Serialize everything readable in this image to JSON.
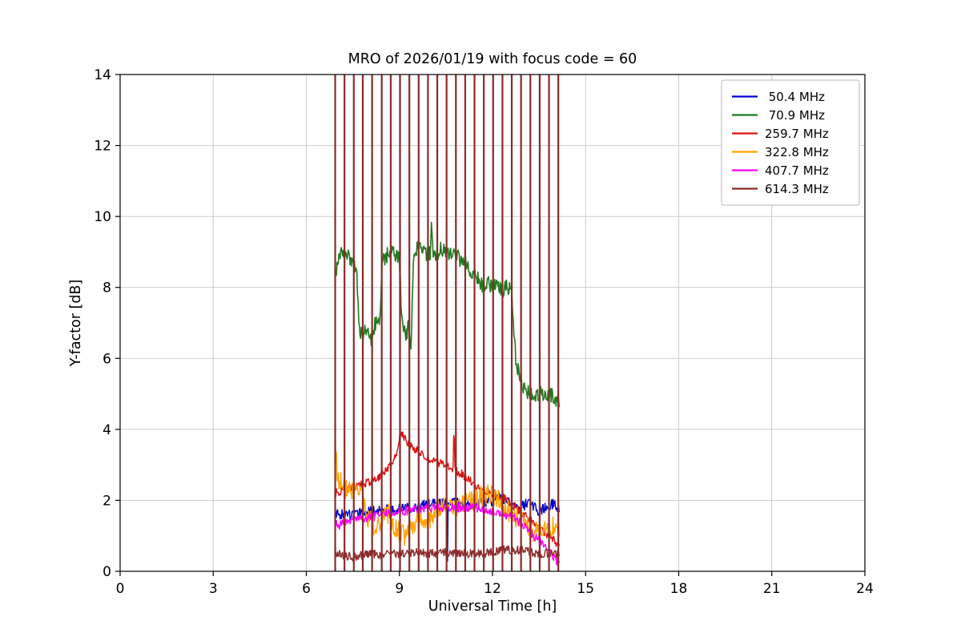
{
  "figure": {
    "background": "#ffffff",
    "axes_border_color": "#000000",
    "grid_color": "#c8c8c8"
  },
  "chart_data": {
    "type": "line",
    "title": "MRO of 2026/01/19 with focus code = 60",
    "xlabel": "Universal Time [h]",
    "ylabel": "Y-factor [dB]",
    "xlim": [
      0,
      24
    ],
    "ylim": [
      0,
      14
    ],
    "x_ticks": [
      0,
      3,
      6,
      9,
      12,
      15,
      18,
      21,
      24
    ],
    "y_ticks": [
      0,
      2,
      4,
      6,
      8,
      10,
      12,
      14
    ],
    "grid": true,
    "legend_position": "upper right",
    "series": [
      {
        "name": "50.4 MHz",
        "label": " 50.4 MHz",
        "color": "#0000cc",
        "width": 1.4,
        "noise": 0.15,
        "points": [
          [
            6.93,
            1.6
          ],
          [
            7.3,
            1.6
          ],
          [
            7.7,
            1.65
          ],
          [
            8.1,
            1.7
          ],
          [
            8.5,
            1.72
          ],
          [
            8.9,
            1.75
          ],
          [
            9.3,
            1.8
          ],
          [
            9.7,
            1.85
          ],
          [
            10.1,
            1.9
          ],
          [
            10.45,
            1.95
          ],
          [
            10.53,
            1.9
          ],
          [
            10.55,
            0.15
          ],
          [
            10.57,
            1.9
          ],
          [
            10.9,
            1.95
          ],
          [
            11.3,
            1.9
          ],
          [
            11.7,
            1.95
          ],
          [
            12.0,
            2.0
          ],
          [
            12.3,
            2.05
          ],
          [
            12.5,
            2.0
          ],
          [
            12.7,
            1.85
          ],
          [
            12.9,
            1.8
          ],
          [
            13.1,
            1.9
          ],
          [
            13.3,
            1.85
          ],
          [
            13.5,
            1.7
          ],
          [
            13.7,
            1.8
          ],
          [
            13.9,
            1.9
          ],
          [
            14.15,
            1.8
          ]
        ]
      },
      {
        "name": "70.9 MHz",
        "label": " 70.9 MHz",
        "color": "#1f7a1f",
        "width": 1.6,
        "noise": 0.22,
        "points": [
          [
            6.95,
            8.5
          ],
          [
            7.1,
            8.9
          ],
          [
            7.3,
            9.0
          ],
          [
            7.5,
            8.7
          ],
          [
            7.62,
            8.5
          ],
          [
            7.7,
            6.9
          ],
          [
            7.8,
            6.6
          ],
          [
            7.95,
            6.8
          ],
          [
            8.1,
            6.5
          ],
          [
            8.25,
            7.1
          ],
          [
            8.35,
            6.9
          ],
          [
            8.45,
            8.7
          ],
          [
            8.6,
            8.9
          ],
          [
            8.75,
            9.1
          ],
          [
            8.9,
            8.9
          ],
          [
            9.0,
            8.8
          ],
          [
            9.08,
            7.0
          ],
          [
            9.2,
            6.6
          ],
          [
            9.3,
            6.9
          ],
          [
            9.38,
            6.4
          ],
          [
            9.45,
            8.9
          ],
          [
            9.6,
            9.2
          ],
          [
            9.75,
            9.0
          ],
          [
            9.9,
            8.9
          ],
          [
            10.0,
            9.0
          ],
          [
            10.03,
            10.0
          ],
          [
            10.06,
            9.1
          ],
          [
            10.2,
            8.9
          ],
          [
            10.35,
            9.1
          ],
          [
            10.5,
            9.0
          ],
          [
            10.65,
            8.9
          ],
          [
            10.8,
            9.0
          ],
          [
            10.95,
            8.8
          ],
          [
            11.1,
            8.7
          ],
          [
            11.25,
            8.5
          ],
          [
            11.4,
            8.4
          ],
          [
            11.55,
            8.2
          ],
          [
            11.7,
            8.0
          ],
          [
            11.85,
            8.1
          ],
          [
            12.0,
            8.0
          ],
          [
            12.15,
            8.1
          ],
          [
            12.3,
            7.9
          ],
          [
            12.45,
            8.0
          ],
          [
            12.6,
            8.0
          ],
          [
            12.75,
            6.0
          ],
          [
            12.85,
            5.6
          ],
          [
            12.95,
            5.3
          ],
          [
            13.1,
            5.1
          ],
          [
            13.25,
            5.0
          ],
          [
            13.4,
            4.9
          ],
          [
            13.55,
            5.0
          ],
          [
            13.7,
            4.9
          ],
          [
            13.85,
            5.0
          ],
          [
            14.0,
            4.9
          ],
          [
            14.15,
            4.8
          ]
        ]
      },
      {
        "name": "259.7 MHz",
        "label": "259.7 MHz",
        "color": "#dd1111",
        "width": 1.4,
        "noise": 0.12,
        "points": [
          [
            6.93,
            2.2
          ],
          [
            7.2,
            2.3
          ],
          [
            7.5,
            2.35
          ],
          [
            7.8,
            2.45
          ],
          [
            8.1,
            2.55
          ],
          [
            8.4,
            2.7
          ],
          [
            8.7,
            2.95
          ],
          [
            8.9,
            3.3
          ],
          [
            9.0,
            3.8
          ],
          [
            9.1,
            3.9
          ],
          [
            9.25,
            3.6
          ],
          [
            9.4,
            3.5
          ],
          [
            9.6,
            3.4
          ],
          [
            9.8,
            3.25
          ],
          [
            10.0,
            3.15
          ],
          [
            10.2,
            3.1
          ],
          [
            10.4,
            3.0
          ],
          [
            10.6,
            2.95
          ],
          [
            10.73,
            2.9
          ],
          [
            10.76,
            4.2
          ],
          [
            10.79,
            2.85
          ],
          [
            11.0,
            2.75
          ],
          [
            11.2,
            2.6
          ],
          [
            11.4,
            2.45
          ],
          [
            11.6,
            2.35
          ],
          [
            11.8,
            2.25
          ],
          [
            12.0,
            2.2
          ],
          [
            12.2,
            2.15
          ],
          [
            12.4,
            2.05
          ],
          [
            12.6,
            1.9
          ],
          [
            12.8,
            1.75
          ],
          [
            13.0,
            1.6
          ],
          [
            13.2,
            1.45
          ],
          [
            13.4,
            1.3
          ],
          [
            13.6,
            1.15
          ],
          [
            13.8,
            1.0
          ],
          [
            14.0,
            0.85
          ],
          [
            14.15,
            0.7
          ]
        ]
      },
      {
        "name": "322.8 MHz",
        "label": "322.8 MHz",
        "color": "#ffa500",
        "width": 1.4,
        "noise": 0.3,
        "points": [
          [
            6.93,
            3.6
          ],
          [
            7.0,
            2.7
          ],
          [
            7.15,
            2.4
          ],
          [
            7.3,
            2.3
          ],
          [
            7.5,
            2.2
          ],
          [
            7.7,
            2.3
          ],
          [
            7.85,
            1.8
          ],
          [
            8.0,
            1.5
          ],
          [
            8.2,
            1.2
          ],
          [
            8.4,
            1.3
          ],
          [
            8.6,
            1.7
          ],
          [
            8.8,
            1.3
          ],
          [
            9.0,
            1.1
          ],
          [
            9.2,
            1.0
          ],
          [
            9.4,
            1.3
          ],
          [
            9.6,
            1.5
          ],
          [
            9.8,
            1.3
          ],
          [
            10.0,
            1.5
          ],
          [
            10.2,
            1.7
          ],
          [
            10.4,
            1.8
          ],
          [
            10.6,
            1.7
          ],
          [
            10.8,
            1.8
          ],
          [
            11.0,
            1.9
          ],
          [
            11.2,
            2.0
          ],
          [
            11.4,
            2.0
          ],
          [
            11.6,
            2.1
          ],
          [
            11.8,
            2.2
          ],
          [
            12.0,
            2.2
          ],
          [
            12.2,
            2.0
          ],
          [
            12.4,
            1.8
          ],
          [
            12.6,
            1.6
          ],
          [
            12.8,
            1.5
          ],
          [
            13.0,
            1.35
          ],
          [
            13.2,
            1.2
          ],
          [
            13.4,
            1.1
          ],
          [
            13.6,
            1.15
          ],
          [
            13.8,
            1.2
          ],
          [
            14.0,
            1.3
          ],
          [
            14.15,
            1.25
          ]
        ]
      },
      {
        "name": "407.7 MHz",
        "label": "407.7 MHz",
        "color": "#ff00ff",
        "width": 1.4,
        "noise": 0.13,
        "points": [
          [
            6.93,
            1.4
          ],
          [
            7.1,
            1.3
          ],
          [
            7.3,
            1.4
          ],
          [
            7.6,
            1.45
          ],
          [
            7.9,
            1.5
          ],
          [
            8.2,
            1.55
          ],
          [
            8.5,
            1.6
          ],
          [
            8.8,
            1.65
          ],
          [
            9.1,
            1.7
          ],
          [
            9.4,
            1.72
          ],
          [
            9.7,
            1.75
          ],
          [
            10.0,
            1.78
          ],
          [
            10.3,
            1.8
          ],
          [
            10.6,
            1.8
          ],
          [
            10.9,
            1.8
          ],
          [
            11.2,
            1.78
          ],
          [
            11.5,
            1.78
          ],
          [
            11.8,
            1.72
          ],
          [
            12.1,
            1.68
          ],
          [
            12.4,
            1.6
          ],
          [
            12.7,
            1.5
          ],
          [
            13.0,
            1.3
          ],
          [
            13.2,
            1.1
          ],
          [
            13.4,
            0.95
          ],
          [
            13.6,
            0.8
          ],
          [
            13.8,
            0.6
          ],
          [
            14.0,
            0.4
          ],
          [
            14.15,
            0.2
          ]
        ]
      },
      {
        "name": "614.3 MHz",
        "label": "614.3 MHz",
        "color": "#8b2a2a",
        "width": 1.4,
        "noise": 0.12,
        "points": [
          [
            6.93,
            0.5
          ],
          [
            7.2,
            0.45
          ],
          [
            7.5,
            0.4
          ],
          [
            7.8,
            0.45
          ],
          [
            8.1,
            0.5
          ],
          [
            8.4,
            0.45
          ],
          [
            8.7,
            0.5
          ],
          [
            9.0,
            0.5
          ],
          [
            9.3,
            0.5
          ],
          [
            9.6,
            0.55
          ],
          [
            9.9,
            0.5
          ],
          [
            10.2,
            0.5
          ],
          [
            10.5,
            0.55
          ],
          [
            10.8,
            0.5
          ],
          [
            11.1,
            0.5
          ],
          [
            11.4,
            0.5
          ],
          [
            11.7,
            0.5
          ],
          [
            12.0,
            0.55
          ],
          [
            12.3,
            0.6
          ],
          [
            12.6,
            0.6
          ],
          [
            12.9,
            0.6
          ],
          [
            13.2,
            0.55
          ],
          [
            13.5,
            0.5
          ],
          [
            13.8,
            0.5
          ],
          [
            14.15,
            0.45
          ]
        ]
      }
    ],
    "spikes": {
      "description": "full-height vertical lines of the 614.3 MHz channel",
      "color": "#8b2a2a",
      "width": 2.2,
      "y_bottom": 0,
      "y_top": 14,
      "x": [
        6.93,
        7.23,
        7.53,
        7.82,
        8.12,
        8.43,
        8.72,
        9.02,
        9.32,
        9.62,
        9.92,
        10.22,
        10.52,
        10.82,
        11.12,
        11.42,
        11.72,
        12.02,
        12.32,
        12.62,
        12.92,
        13.22,
        13.52,
        13.82,
        14.12
      ]
    }
  }
}
